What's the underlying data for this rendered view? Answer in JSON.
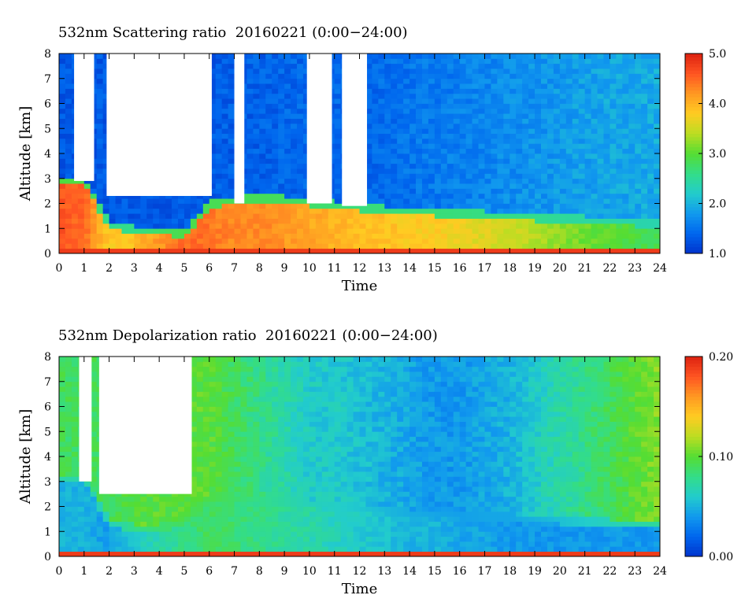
{
  "chart_data": [
    {
      "type": "heatmap",
      "title": "532nm Scattering ratio  20160221 (0:00−24:00)",
      "xlabel": "Time",
      "ylabel": "Altitude [km]",
      "xlim": [
        0,
        24
      ],
      "ylim": [
        0,
        8
      ],
      "x_ticks": [
        "0",
        "1",
        "2",
        "3",
        "4",
        "5",
        "6",
        "7",
        "8",
        "9",
        "10",
        "11",
        "12",
        "13",
        "14",
        "15",
        "16",
        "17",
        "18",
        "19",
        "20",
        "21",
        "22",
        "23",
        "24"
      ],
      "y_ticks": [
        "0",
        "1",
        "2",
        "3",
        "4",
        "5",
        "6",
        "7",
        "8"
      ],
      "colorbar": {
        "min": 1.0,
        "max": 5.0,
        "ticks": [
          "1.0",
          "2.0",
          "3.0",
          "4.0",
          "5.0"
        ]
      },
      "colormap": [
        "#0033cc",
        "#0066ee",
        "#1199ee",
        "#22cccc",
        "#33dd88",
        "#55dd33",
        "#bbdd22",
        "#ffcc22",
        "#ff9922",
        "#ff5522",
        "#dd2211"
      ],
      "boundary_layer_top_km": [
        2.8,
        2.8,
        1.0,
        0.8,
        0.8,
        0.6,
        1.8,
        2.0,
        2.1,
        2.0,
        1.9,
        1.8,
        1.7,
        1.6,
        1.55,
        1.5,
        1.45,
        1.4,
        1.35,
        1.3,
        1.25,
        1.2,
        1.15,
        1.1,
        1.05
      ],
      "surface_layer_value": [
        4.6,
        4.5,
        3.8,
        3.9,
        4.2,
        4.5,
        4.4,
        4.3,
        4.3,
        4.2,
        4.1,
        4.0,
        3.9,
        3.9,
        3.8,
        3.8,
        3.7,
        3.6,
        3.5,
        3.4,
        3.2,
        3.1,
        3.0,
        2.9,
        2.8
      ],
      "free_troposphere_value": [
        1.3,
        1.3,
        1.3,
        1.3,
        1.3,
        1.3,
        1.3,
        1.35,
        1.35,
        1.4,
        1.4,
        1.4,
        1.4,
        1.45,
        1.5,
        1.55,
        1.6,
        1.65,
        1.7,
        1.75,
        1.8,
        1.85,
        1.9,
        1.9,
        1.95
      ]
    },
    {
      "type": "heatmap",
      "title": "532nm Depolarization ratio  20160221 (0:00−24:00)",
      "xlabel": "Time",
      "ylabel": "Altitude [km]",
      "xlim": [
        0,
        24
      ],
      "ylim": [
        0,
        8
      ],
      "x_ticks": [
        "0",
        "1",
        "2",
        "3",
        "4",
        "5",
        "6",
        "7",
        "8",
        "9",
        "10",
        "11",
        "12",
        "13",
        "14",
        "15",
        "16",
        "17",
        "18",
        "19",
        "20",
        "21",
        "22",
        "23",
        "24"
      ],
      "y_ticks": [
        "0",
        "1",
        "2",
        "3",
        "4",
        "5",
        "6",
        "7",
        "8"
      ],
      "colorbar": {
        "min": 0.0,
        "max": 0.2,
        "ticks": [
          "0.00",
          "0.10",
          "0.20"
        ]
      },
      "colormap": [
        "#0033cc",
        "#0066ee",
        "#1199ee",
        "#22cccc",
        "#33dd88",
        "#55dd33",
        "#bbdd22",
        "#ffcc22",
        "#ff9922",
        "#ff5522",
        "#dd2211"
      ],
      "boundary_layer_top_km": [
        3.0,
        3.0,
        1.2,
        1.0,
        1.0,
        1.2,
        2.3,
        2.2,
        2.1,
        2.05,
        2.0,
        1.9,
        1.8,
        1.7,
        1.6,
        1.55,
        1.5,
        1.45,
        1.4,
        1.35,
        1.3,
        1.25,
        1.2,
        1.15,
        1.1
      ],
      "surface_layer_value": [
        0.05,
        0.05,
        0.04,
        0.06,
        0.07,
        0.08,
        0.09,
        0.085,
        0.08,
        0.075,
        0.07,
        0.065,
        0.06,
        0.055,
        0.05,
        0.05,
        0.045,
        0.045,
        0.04,
        0.04,
        0.04,
        0.04,
        0.04,
        0.04,
        0.04
      ],
      "free_troposphere_value": [
        0.09,
        0.09,
        0.09,
        0.1,
        0.1,
        0.1,
        0.1,
        0.09,
        0.08,
        0.07,
        0.06,
        0.06,
        0.055,
        0.05,
        0.045,
        0.04,
        0.04,
        0.045,
        0.05,
        0.06,
        0.07,
        0.08,
        0.09,
        0.1,
        0.11
      ]
    }
  ]
}
